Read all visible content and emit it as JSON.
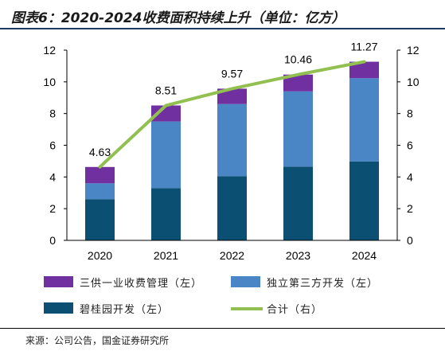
{
  "header": {
    "title": "图表6：2020-2024收费面积持续上升（单位：亿方）"
  },
  "footer": {
    "source": "来源：公司公告，国金证券研究所"
  },
  "colors": {
    "bg_series": "#0b4f72",
    "indep_series": "#4a86c5",
    "sanfang_series": "#7030a0",
    "total_line": "#92c050",
    "axis": "#000000"
  },
  "chart_data": {
    "type": "bar",
    "stacked": true,
    "categories": [
      "2020",
      "2021",
      "2022",
      "2023",
      "2024"
    ],
    "series": [
      {
        "name": "碧桂园开发（左）",
        "values": [
          2.6,
          3.3,
          4.05,
          4.65,
          4.98
        ],
        "color": "#0b4f72"
      },
      {
        "name": "独立第三方开发（左）",
        "values": [
          1.0,
          4.2,
          4.55,
          4.75,
          5.25
        ],
        "color": "#4a86c5"
      },
      {
        "name": "三供一业收费管理（左）",
        "values": [
          1.03,
          1.01,
          0.97,
          1.06,
          1.04
        ],
        "color": "#7030a0"
      }
    ],
    "line_series": {
      "name": "合计（右）",
      "values": [
        4.63,
        8.51,
        9.57,
        10.46,
        11.27
      ],
      "axis": "right",
      "color": "#92c050"
    },
    "data_labels": [
      "4.63",
      "8.51",
      "9.57",
      "10.46",
      "11.27"
    ],
    "ylim": [
      0,
      12
    ],
    "y_ticks": [
      0,
      2,
      4,
      6,
      8,
      10,
      12
    ],
    "y2lim": [
      0,
      12
    ],
    "y2_ticks": [
      0,
      2,
      4,
      6,
      8,
      10,
      12
    ],
    "legend": [
      "三供一业收费管理（左）",
      "独立第三方开发（左）",
      "碧桂园开发（左）",
      "合计（右）"
    ],
    "legend_position": "bottom",
    "grid": false
  }
}
